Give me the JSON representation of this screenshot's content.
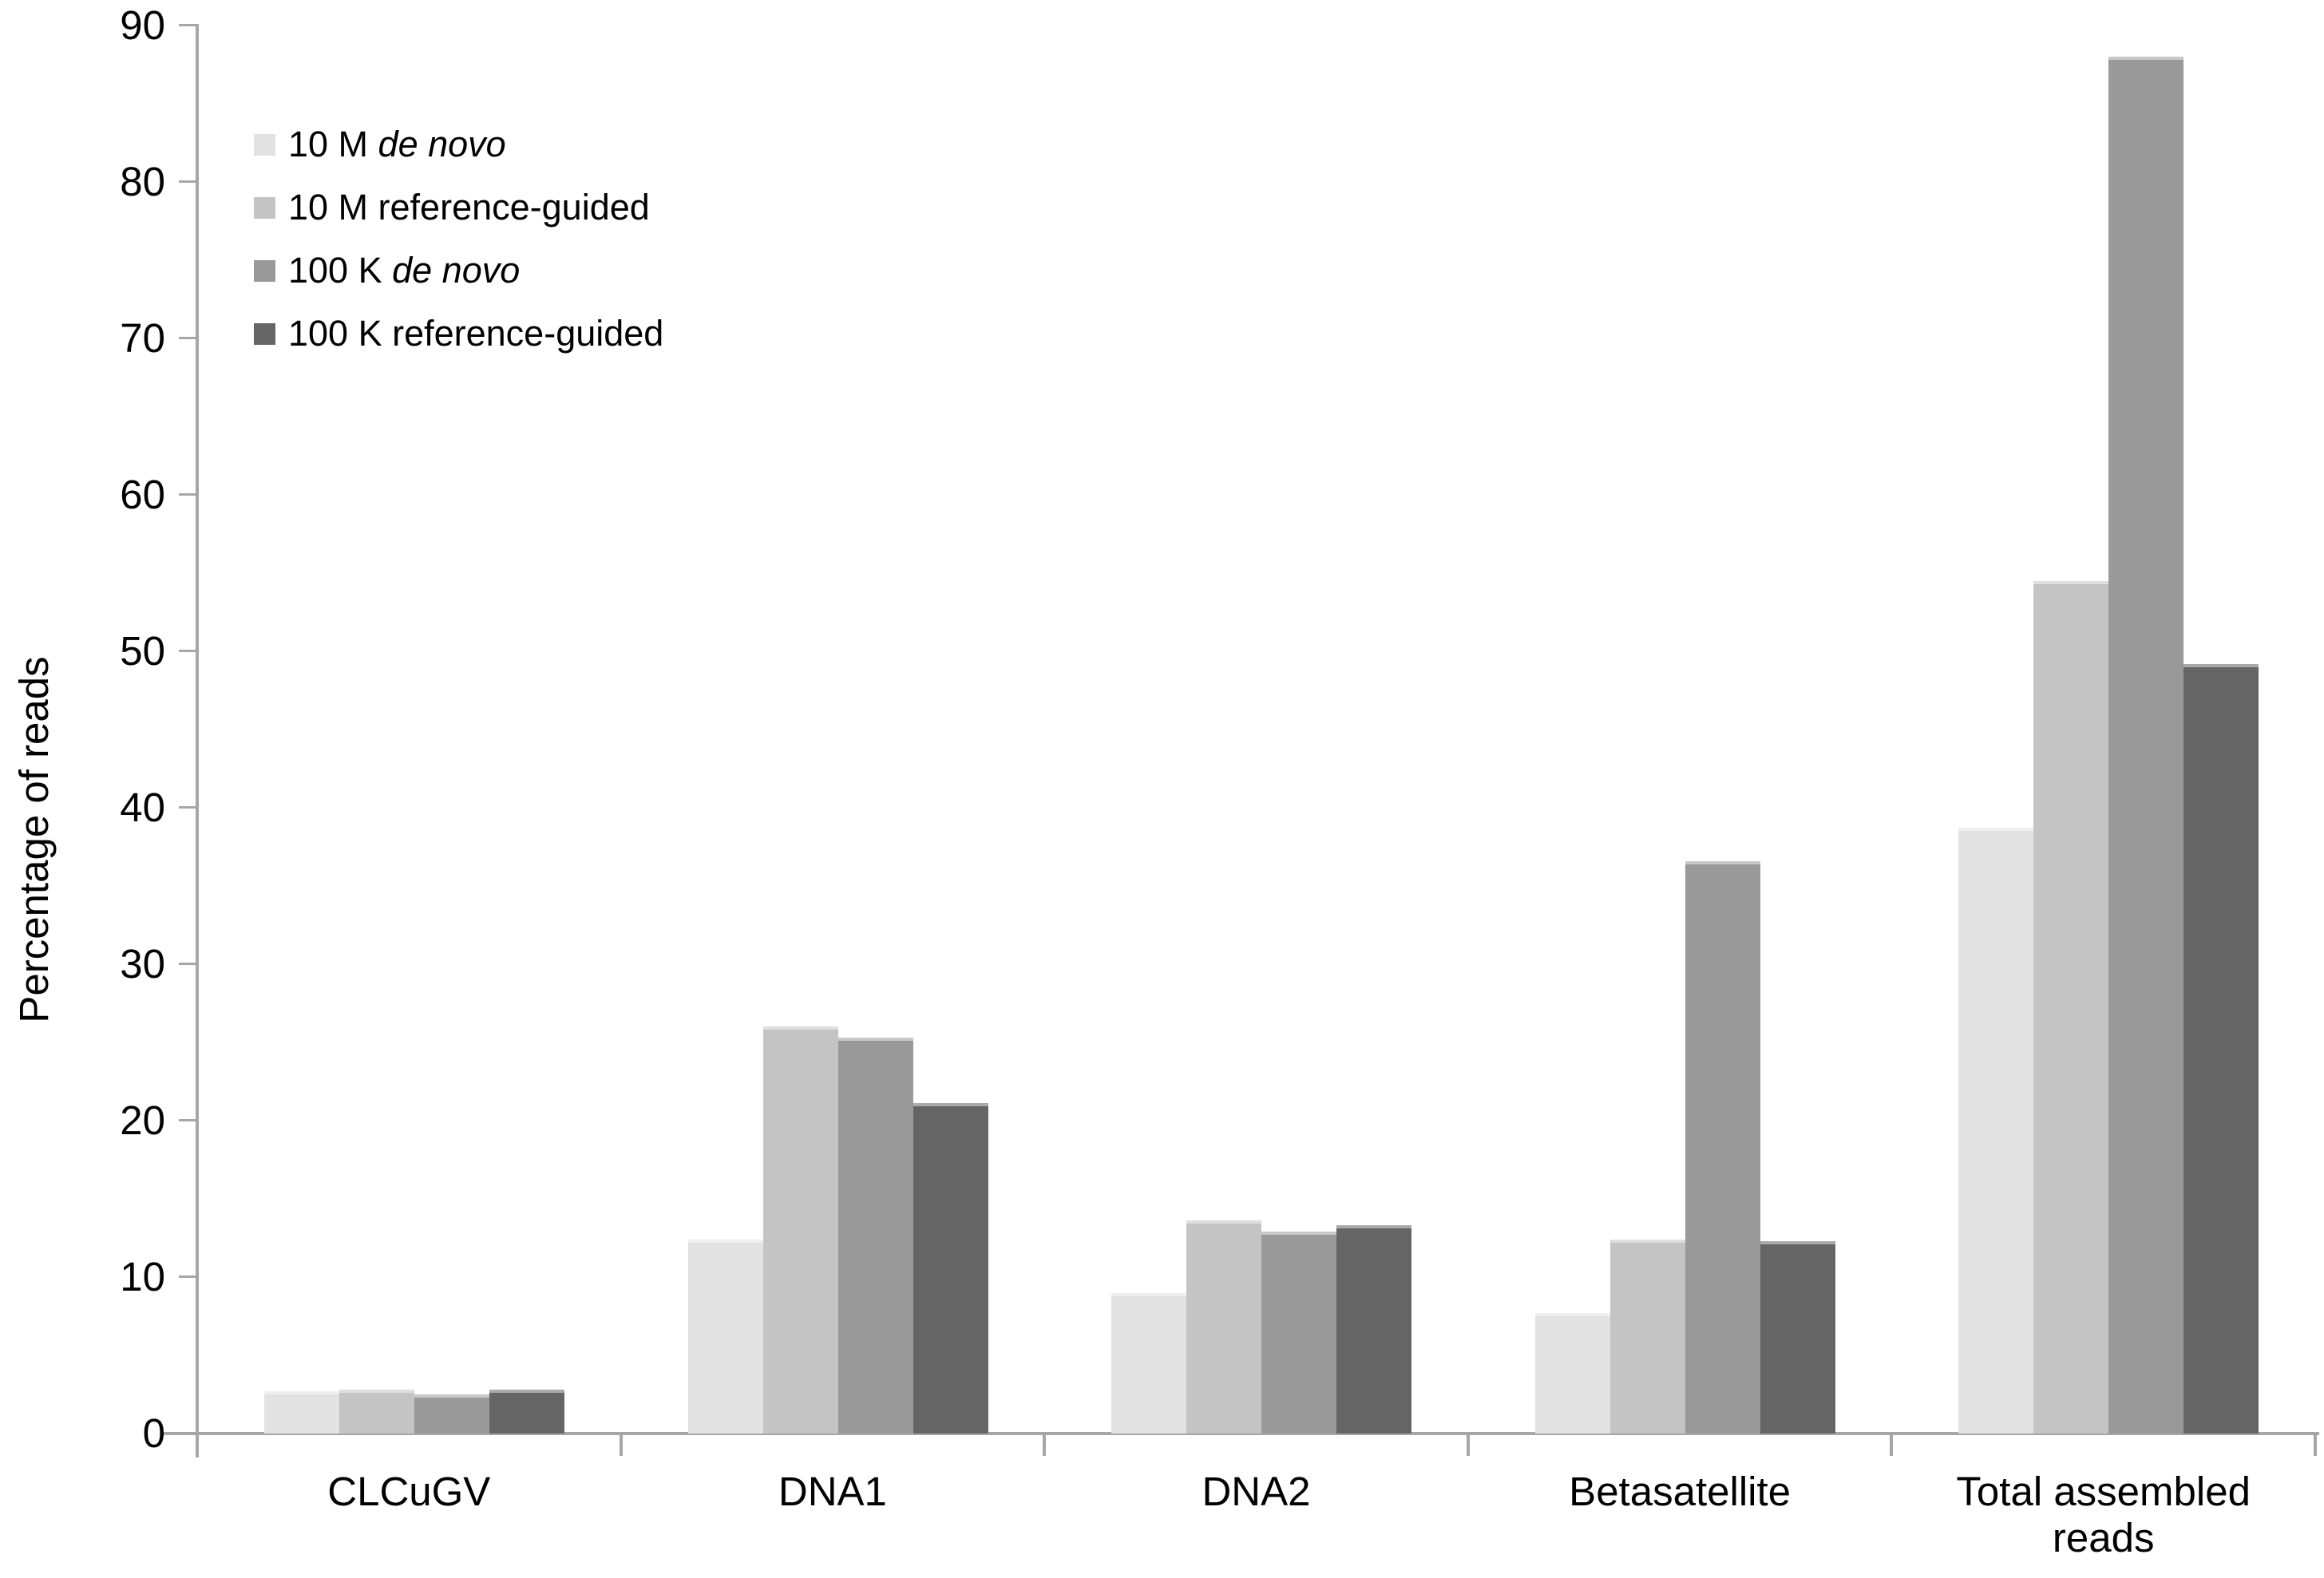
{
  "chart_data": {
    "type": "bar",
    "title": "",
    "xlabel": "",
    "ylabel": "Percentage of reads",
    "ylim": [
      0,
      90
    ],
    "ytick_step": 10,
    "yticks": [
      0,
      10,
      20,
      30,
      40,
      50,
      60,
      70,
      80,
      90
    ],
    "grid": false,
    "legend_position": "top-left-inside",
    "axis_color": "#a6a6a6",
    "text_color": "#000000",
    "background_color": "#ffffff",
    "categories": [
      "CLCuGV",
      "DNA1",
      "DNA2",
      "Betasatellite",
      "Total assembled\nreads"
    ],
    "series": [
      {
        "name": "10 M de novo",
        "label_plain": "10 M ",
        "label_italic": "de novo",
        "color": "#e2e2e2",
        "values": [
          2.7,
          12.4,
          9.0,
          7.7,
          38.7
        ]
      },
      {
        "name": "10 M reference-guided",
        "label_plain": "10 M reference-guided",
        "label_italic": "",
        "color": "#c4c4c4",
        "values": [
          2.8,
          26.0,
          13.6,
          12.4,
          54.5
        ]
      },
      {
        "name": "100 K de novo",
        "label_plain": "100 K ",
        "label_italic": "de novo",
        "color": "#999999",
        "values": [
          2.5,
          25.3,
          12.9,
          36.6,
          88.0
        ]
      },
      {
        "name": "100 K reference-guided",
        "label_plain": "100 K reference-guided",
        "label_italic": "",
        "color": "#656565",
        "values": [
          2.8,
          21.1,
          13.3,
          12.3,
          49.2
        ]
      }
    ]
  }
}
